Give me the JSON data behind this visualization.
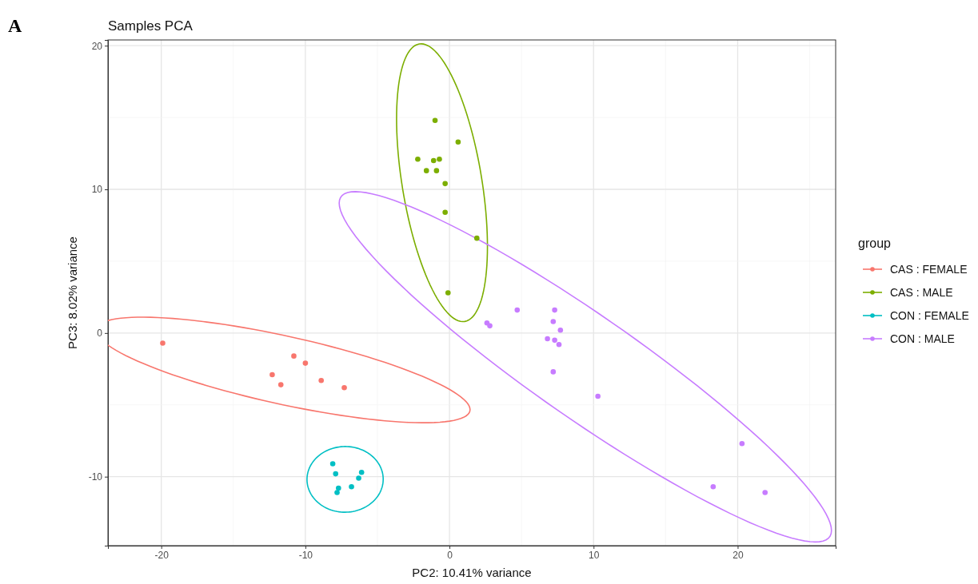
{
  "chart_data": {
    "type": "scatter",
    "title": "Samples PCA",
    "xlabel": "PC2: 10.41% variance",
    "ylabel": "PC3: 8.02% variance",
    "legend_title": "group",
    "annotations": [
      "A"
    ],
    "xlim": [
      -23.7,
      26.8
    ],
    "ylim": [
      -14.8,
      20.4
    ],
    "xticks": [
      -20,
      -10,
      0,
      10,
      20
    ],
    "yticks": [
      -10,
      0,
      10,
      20
    ],
    "grid": true,
    "legend": "right",
    "marker": "circle",
    "series": [
      {
        "name": "CAS : FEMALE",
        "color": "#f8766d",
        "x": [
          -19.9,
          -10.8,
          -10.0,
          -12.3,
          -11.7,
          -8.9,
          -7.3
        ],
        "values": [
          -0.7,
          -1.6,
          -2.1,
          -2.9,
          -3.6,
          -3.3,
          -3.8
        ]
      },
      {
        "name": "CAS : MALE",
        "color": "#7cae00",
        "x": [
          -1.0,
          0.6,
          -2.2,
          -1.1,
          -0.7,
          -1.6,
          -0.9,
          -0.3,
          -0.3,
          1.9,
          -0.1
        ],
        "values": [
          14.8,
          13.3,
          12.1,
          12.0,
          12.1,
          11.3,
          11.3,
          10.4,
          8.4,
          6.6,
          2.8
        ]
      },
      {
        "name": "CON : FEMALE",
        "color": "#00bfc4",
        "x": [
          -8.1,
          -7.9,
          -7.7,
          -7.8,
          -6.8,
          -6.3,
          -6.1
        ],
        "values": [
          -9.1,
          -9.8,
          -10.8,
          -11.1,
          -10.7,
          -10.1,
          -9.7
        ]
      },
      {
        "name": "CON : MALE",
        "color": "#c77cff",
        "x": [
          4.7,
          7.3,
          7.2,
          7.7,
          6.8,
          7.3,
          7.6,
          7.2,
          2.6,
          2.8,
          10.3,
          20.3,
          18.3,
          21.9
        ],
        "values": [
          1.6,
          1.6,
          0.8,
          0.2,
          -0.4,
          -0.5,
          -0.8,
          -2.7,
          0.7,
          0.5,
          -4.4,
          -7.7,
          -10.7,
          -11.1
        ]
      }
    ]
  }
}
